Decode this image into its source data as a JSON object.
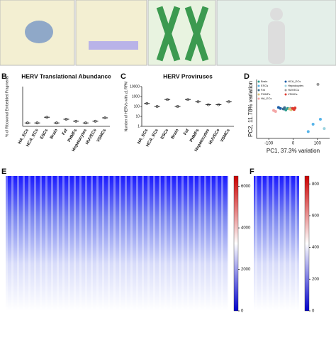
{
  "chart_data": [
    {
      "panel": "B",
      "type": "dotplot",
      "title": "HERV Translational Abundance",
      "y_label": "% of Ribosomal Embedded Fragments",
      "categories": [
        "HA_ECs",
        "HCA_ECs",
        "ESCs",
        "Brain",
        "Fat",
        "PHMFs",
        "Hepatocytes",
        "HUVECs",
        "VSMCs"
      ],
      "values": [
        0.12,
        0.12,
        0.32,
        0.12,
        0.25,
        0.18,
        0.12,
        0.18,
        0.3
      ],
      "ylim": [
        0,
        1.4
      ],
      "color": "#222"
    },
    {
      "panel": "C",
      "type": "dotplot",
      "title": "HERV Proviruses",
      "y_label": "Number of HERVs with ≥1 RPM",
      "categories": [
        "HA_ECs",
        "HCA_ECs",
        "ESCs",
        "Brain",
        "Fat",
        "PHMFs",
        "Hepatocytes",
        "HUVECs",
        "VSMCs"
      ],
      "values": [
        200,
        100,
        500,
        100,
        500,
        300,
        150,
        150,
        300
      ],
      "log_scale": true,
      "ylim": [
        1,
        10000
      ],
      "yticks": [
        1,
        10,
        100,
        1000,
        10000
      ],
      "color": "#222"
    },
    {
      "panel": "D",
      "type": "scatter",
      "x_label": "PC1, 37.3% variation",
      "y_label": "PC2, 11.78% variation",
      "xlim": [
        -150,
        150
      ],
      "xticks": [
        -100,
        0,
        100
      ],
      "ylim": [
        -120,
        120
      ],
      "series": [
        {
          "name": "Brain",
          "color": "#2a9d8f",
          "x": [
            -30,
            -22
          ],
          "y": [
            -4,
            2
          ]
        },
        {
          "name": "HCA_ECs",
          "color": "#1f5fa8",
          "x": [
            -60,
            -52
          ],
          "y": [
            6,
            2
          ]
        },
        {
          "name": "ESCs",
          "color": "#56b4e9",
          "x": [
            62,
            82,
            112
          ],
          "y": [
            -92,
            -62,
            -42
          ]
        },
        {
          "name": "Hepatocytes",
          "color": "#9bd3e0",
          "x": [
            128
          ],
          "y": [
            -80
          ]
        },
        {
          "name": "Fat",
          "color": "#3b6e8f",
          "x": [
            -40,
            -35
          ],
          "y": [
            0,
            5
          ]
        },
        {
          "name": "HUVECs",
          "color": "#999999",
          "x": [
            102,
            -10
          ],
          "y": [
            100,
            3
          ]
        },
        {
          "name": "PHMFs",
          "color": "#d9c27a",
          "x": [
            -15,
            -8
          ],
          "y": [
            0,
            -3
          ]
        },
        {
          "name": "VSMCs",
          "color": "#e03a2f",
          "x": [
            -2,
            4,
            8
          ],
          "y": [
            2,
            -2,
            4
          ]
        },
        {
          "name": "HA_ECs",
          "color": "#f4a6a6",
          "x": [
            -80,
            -72
          ],
          "y": [
            -6,
            -10
          ]
        }
      ]
    },
    {
      "panel": "E",
      "type": "heatmap",
      "zlim": [
        0,
        6500
      ],
      "zticks": [
        0,
        2000,
        4000,
        6000
      ]
    },
    {
      "panel": "F",
      "type": "heatmap",
      "zlim": [
        0,
        850
      ],
      "zticks": [
        0,
        200,
        400,
        600,
        800
      ]
    }
  ]
}
